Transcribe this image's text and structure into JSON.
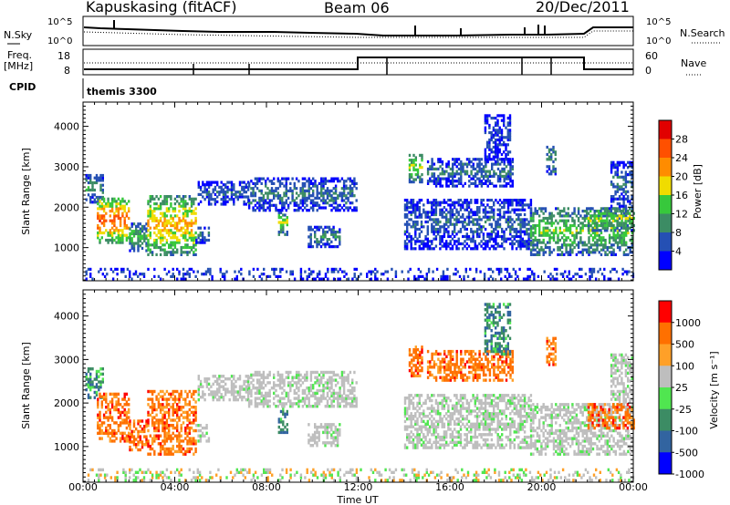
{
  "header": {
    "station": "Kapuskasing (fitACF)",
    "beam": "Beam 06",
    "date": "20/Dec/2011"
  },
  "top_panels": {
    "nsky_label": "N.Sky",
    "nsearch_label": "N.Search",
    "nsky_ticks": [
      "10^5",
      "10^0"
    ],
    "freq_label_1": "Freq.",
    "freq_label_2": "[MHz]",
    "freq_ticks": [
      "18",
      "8"
    ],
    "nave_label": "Nave",
    "nave_ticks": [
      "60",
      "0"
    ],
    "cpid_label": "CPID",
    "cpid_text": "themis 3300"
  },
  "axes": {
    "ylabel": "Slant Range [km]",
    "xlabel": "Time UT",
    "x_ticks": [
      "00:00",
      "04:00",
      "08:00",
      "12:00",
      "16:00",
      "20:00",
      "00:00"
    ],
    "y_ticks": [
      1000,
      2000,
      3000,
      4000
    ],
    "ylim": [
      180,
      4600
    ]
  },
  "chart_data": [
    {
      "type": "heatmap",
      "name": "Power",
      "colorbar_label": "Power [dB]",
      "colorbar_ticks": [
        "28",
        "24",
        "20",
        "16",
        "12",
        "8",
        "4"
      ],
      "colors": [
        "#0000ff",
        "#2550b4",
        "#3c8c64",
        "#37c83c",
        "#f0dc00",
        "#ff8c00",
        "#ff5000",
        "#e10000"
      ],
      "x_range_hours": [
        0,
        24
      ],
      "y_range_km": [
        180,
        4600
      ]
    },
    {
      "type": "heatmap",
      "name": "Velocity",
      "colorbar_label": "Velocity [m s⁻¹]",
      "colorbar_ticks": [
        "1000",
        "500",
        "100",
        "25",
        "-25",
        "-100",
        "-500",
        "-1000"
      ],
      "colors": [
        "#0000ff",
        "#3264a0",
        "#3c8c64",
        "#50e650",
        "#bebebe",
        "#ffa028",
        "#ff7000",
        "#ff0000"
      ],
      "x_range_hours": [
        0,
        24
      ],
      "y_range_km": [
        180,
        4600
      ]
    }
  ]
}
